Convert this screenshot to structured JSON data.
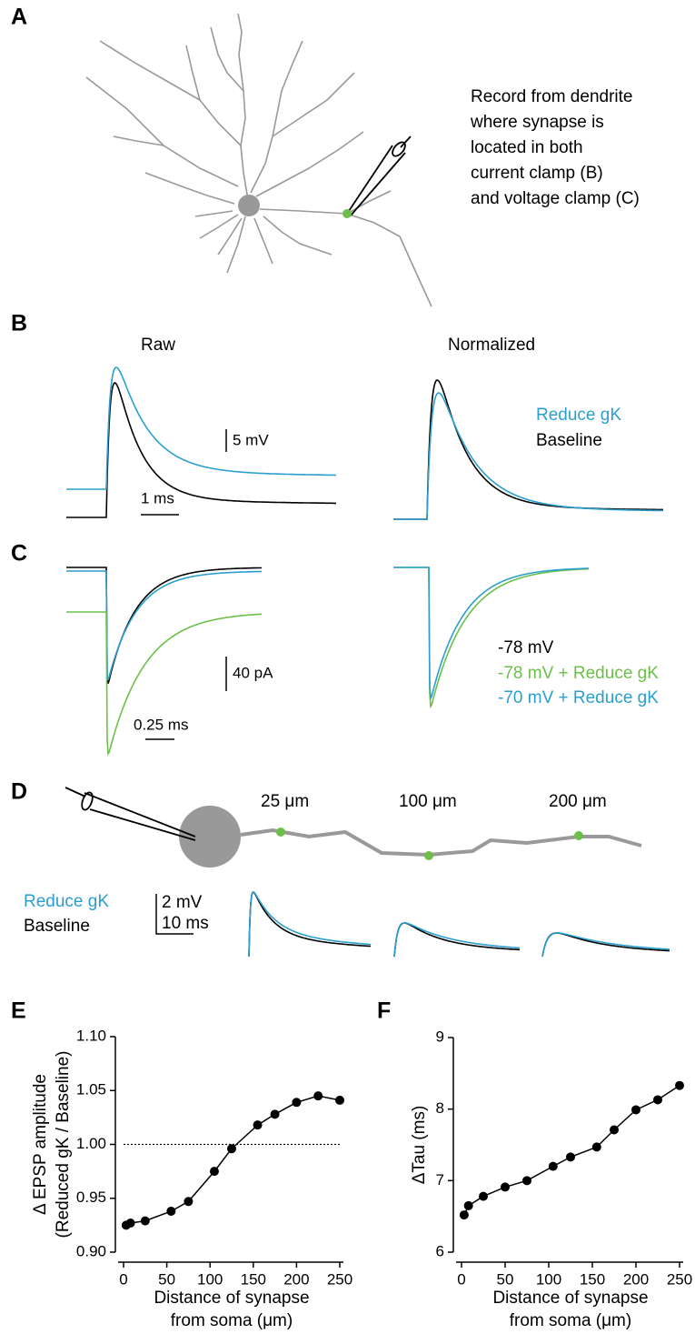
{
  "panel_labels": [
    "A",
    "B",
    "C",
    "D",
    "E",
    "F"
  ],
  "panel_a": {
    "note": [
      "Record from  dendrite",
      "where synapse is",
      "located in both",
      "current clamp (B)",
      "and voltage clamp (C)"
    ]
  },
  "panel_b": {
    "raw_title": "Raw",
    "normalized_title": "Normalized",
    "scale_y": "5 mV",
    "scale_x": "1 ms",
    "legend": [
      "Reduce gK",
      "Baseline"
    ]
  },
  "panel_c": {
    "scale_y": "40 pA",
    "scale_x": "0.25 ms",
    "legend": [
      "-78 mV",
      "-78 mV + Reduce gK",
      "-70 mV + Reduce gK"
    ]
  },
  "panel_d": {
    "distances": [
      "25 μm",
      "100 μm",
      "200 μm"
    ],
    "legend": [
      "Reduce gK",
      "Baseline"
    ],
    "scale_y": "2 mV",
    "scale_x": "10 ms"
  },
  "chart_data": [
    {
      "type": "line",
      "color": "#000000",
      "x": [
        3,
        8,
        25,
        55,
        75,
        105,
        125,
        155,
        175,
        200,
        225,
        250
      ],
      "values": [
        0.925,
        0.927,
        0.929,
        0.938,
        0.947,
        0.975,
        0.996,
        1.018,
        1.028,
        1.039,
        1.045,
        1.041
      ],
      "xlim": [
        0,
        250
      ],
      "ylim": [
        0.9,
        1.1
      ],
      "xticks": [
        0,
        50,
        100,
        150,
        200,
        250
      ],
      "yticks": [
        {
          "value": 0.9,
          "label": "0.90"
        },
        {
          "value": 0.95,
          "label": "0.95"
        },
        {
          "value": 1.0,
          "label": "1.00"
        },
        {
          "value": 1.05,
          "label": "1.05"
        },
        {
          "value": 1.1,
          "label": "1.10"
        }
      ],
      "reference_line": 1,
      "xlabel": [
        "Distance of synapse",
        "from soma (μm)"
      ],
      "ylabel": [
        "Δ EPSP amplitude",
        "(Reduced gK / Baseline)"
      ]
    },
    {
      "type": "line",
      "color": "#000000",
      "x": [
        3,
        8,
        25,
        50,
        75,
        105,
        125,
        155,
        175,
        200,
        225,
        250
      ],
      "values": [
        6.52,
        6.65,
        6.78,
        6.91,
        7.0,
        7.2,
        7.33,
        7.47,
        7.71,
        7.99,
        8.13,
        8.33
      ],
      "xlim": [
        0,
        250
      ],
      "ylim": [
        6,
        9
      ],
      "xticks": [
        0,
        50,
        100,
        150,
        200,
        250
      ],
      "yticks": [
        6,
        7,
        8,
        9
      ],
      "xlabel": [
        "Distance of synapse",
        "from soma (μm)"
      ],
      "ylabel": [
        "ΔTau (ms)"
      ]
    }
  ]
}
